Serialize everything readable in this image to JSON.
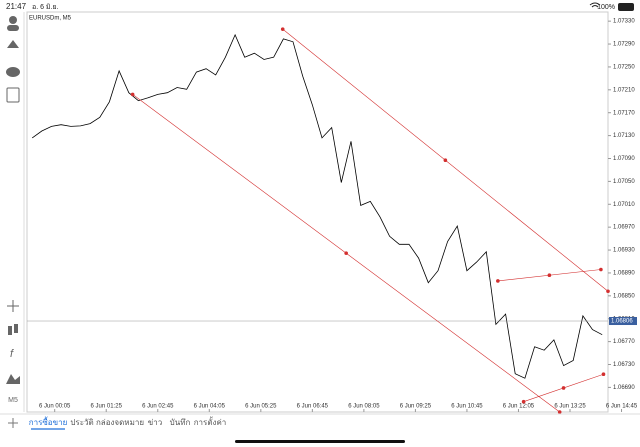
{
  "status_bar": {
    "time": "21:47",
    "date": "อ. 6 มิ.ย.",
    "battery": "100%"
  },
  "toolbar": {
    "timeframe": "M5"
  },
  "tabs": [
    "การซื้อขาย",
    "ประวัติ",
    "กล่องจดหมาย",
    "ข่าว",
    "บันทึก",
    "การตั้งค่า"
  ],
  "chart_data": {
    "type": "line",
    "title": "EURUSDm, M5",
    "color": "#000000",
    "x": [
      -30,
      -15,
      0,
      15,
      30,
      45,
      60,
      75,
      90,
      105,
      120,
      135,
      150,
      165,
      180,
      195,
      210,
      225,
      240,
      255,
      270,
      285,
      300,
      315,
      330,
      345,
      360,
      375,
      390,
      405,
      420,
      435,
      450,
      465,
      480,
      495,
      510,
      525,
      540,
      555,
      570,
      585,
      600,
      615,
      630,
      645,
      660,
      675,
      690,
      705,
      720,
      735,
      750,
      765,
      780,
      795,
      810,
      825,
      840,
      855
    ],
    "values": [
      1.07126,
      1.07138,
      1.07146,
      1.07149,
      1.07146,
      1.07147,
      1.07151,
      1.07162,
      1.07189,
      1.07243,
      1.07205,
      1.07191,
      1.07196,
      1.07202,
      1.07205,
      1.07214,
      1.07211,
      1.07241,
      1.07247,
      1.07236,
      1.07267,
      1.07306,
      1.07267,
      1.07274,
      1.07263,
      1.07267,
      1.07299,
      1.07294,
      1.07234,
      1.07184,
      1.07126,
      1.07144,
      1.07048,
      1.0712,
      1.07008,
      1.07015,
      1.06988,
      1.06954,
      1.0694,
      1.0694,
      1.06916,
      1.06873,
      1.06894,
      1.06945,
      1.06972,
      1.06894,
      1.06909,
      1.06927,
      1.068,
      1.06818,
      1.06714,
      1.06706,
      1.06761,
      1.06755,
      1.06773,
      1.06728,
      1.06737,
      1.06815,
      1.06791,
      1.06782
    ],
    "xlim": [
      -38,
      864
    ],
    "ylim": [
      1.06647,
      1.07346
    ],
    "xticks": [
      {
        "value": 5,
        "label": "6 Jun 00:05"
      },
      {
        "value": 85,
        "label": "6 Jun 01:25"
      },
      {
        "value": 165,
        "label": "6 Jun 02:45"
      },
      {
        "value": 245,
        "label": "6 Jun 04:05"
      },
      {
        "value": 325,
        "label": "6 Jun 05:25"
      },
      {
        "value": 405,
        "label": "6 Jun 06:45"
      },
      {
        "value": 485,
        "label": "6 Jun 08:05"
      },
      {
        "value": 565,
        "label": "6 Jun 09:25"
      },
      {
        "value": 645,
        "label": "6 Jun 10:45"
      },
      {
        "value": 725,
        "label": "6 Jun 12:05"
      },
      {
        "value": 805,
        "label": "6 Jun 13:25"
      },
      {
        "value": 885,
        "label": "6 Jun 14:45"
      }
    ],
    "yticks": [
      {
        "value": 1.0669,
        "label": "1.06690"
      },
      {
        "value": 1.0673,
        "label": "1.06730"
      },
      {
        "value": 1.0677,
        "label": "1.06770"
      },
      {
        "value": 1.0681,
        "label": "1.06810"
      },
      {
        "value": 1.0685,
        "label": "1.06850"
      },
      {
        "value": 1.0689,
        "label": "1.06890"
      },
      {
        "value": 1.0693,
        "label": "1.06930"
      },
      {
        "value": 1.0697,
        "label": "1.06970"
      },
      {
        "value": 1.0701,
        "label": "1.07010"
      },
      {
        "value": 1.0705,
        "label": "1.07050"
      },
      {
        "value": 1.0709,
        "label": "1.07090"
      },
      {
        "value": 1.0713,
        "label": "1.07130"
      },
      {
        "value": 1.0717,
        "label": "1.07170"
      },
      {
        "value": 1.0721,
        "label": "1.07210"
      },
      {
        "value": 1.0725,
        "label": "1.07250"
      },
      {
        "value": 1.0729,
        "label": "1.07290"
      },
      {
        "value": 1.0733,
        "label": "1.07330"
      }
    ],
    "current_price": 1.06806,
    "trendline_color": "#d32f2f",
    "trendlines": [
      {
        "x": [
          359,
          864
        ],
        "y": [
          1.07316,
          1.06858
        ]
      },
      {
        "x": [
          126,
          789
        ],
        "y": [
          1.07202,
          1.06647
        ]
      },
      {
        "x": [
          693,
          853
        ],
        "y": [
          1.06876,
          1.06896
        ]
      },
      {
        "x": [
          733,
          857
        ],
        "y": [
          1.06665,
          1.06713
        ]
      }
    ]
  }
}
